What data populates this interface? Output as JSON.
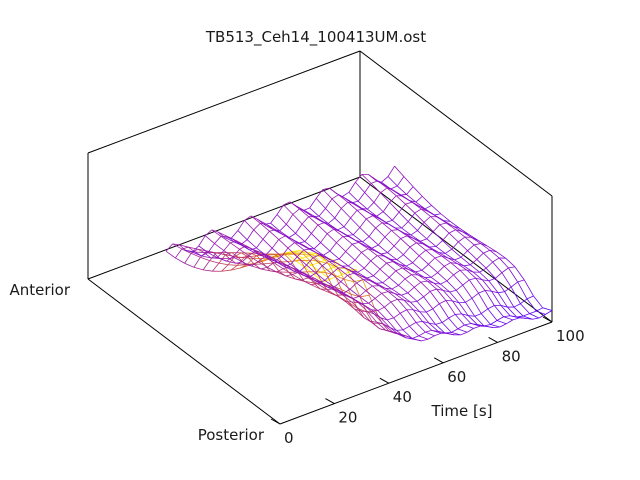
{
  "chart_data": {
    "type": "surface",
    "style": "wireframe",
    "title": "TB513_Ceh14_100413UM.ost",
    "xlabel": "Time [s]",
    "x_range": [
      0,
      100
    ],
    "x_ticks": [
      0,
      20,
      40,
      60,
      80,
      100
    ],
    "y_axis_labels": {
      "start": "Anterior",
      "end": "Posterior"
    },
    "grid": false,
    "legend": "none",
    "colormap": [
      "#4b00ff",
      "#8b10c8",
      "#c23d5a",
      "#e0781e",
      "#ffee00"
    ],
    "surface": {
      "time_start": 16,
      "time_end": 100,
      "time_lines": 36,
      "position_lines": 18,
      "peak_time": 20,
      "peak_position": "posterior",
      "trend": "signal highest at early time on the posterior side, decaying with time; anterior side low throughout"
    }
  }
}
